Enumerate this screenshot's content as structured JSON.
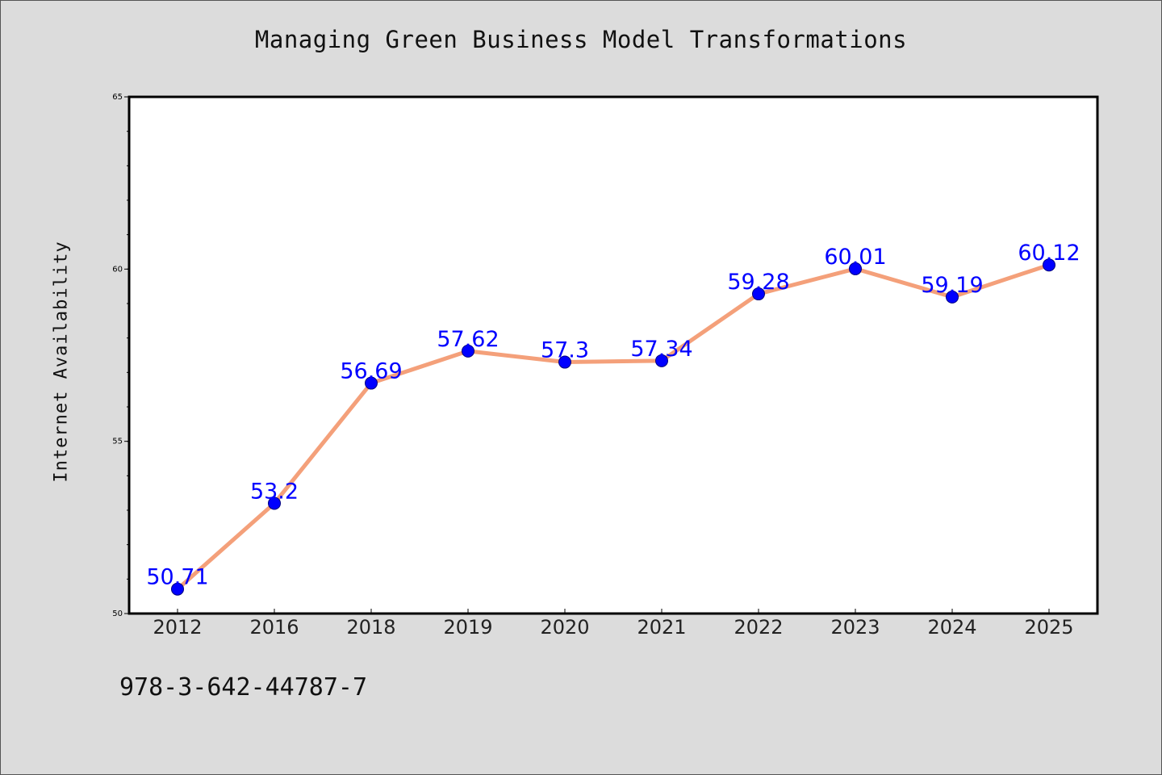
{
  "chart_data": {
    "type": "line",
    "title": "Managing Green Business Model Transformations",
    "xlabel": "",
    "ylabel": "Internet Availability",
    "categories": [
      "2012",
      "2016",
      "2018",
      "2019",
      "2020",
      "2021",
      "2022",
      "2023",
      "2024",
      "2025"
    ],
    "series": [
      {
        "values": [
          50.71,
          53.2,
          56.69,
          57.62,
          57.3,
          57.34,
          59.28,
          60.01,
          59.19,
          60.12
        ],
        "data_labels": [
          "50.71",
          "53.2",
          "56.69",
          "57.62",
          "57.3",
          "57.34",
          "59.28",
          "60.01",
          "59.19",
          "60.12"
        ]
      }
    ],
    "ylim": [
      50,
      65
    ],
    "yticks": [
      50,
      55,
      60,
      65
    ],
    "ytick_labels": [
      "50",
      "55",
      "60",
      "65"
    ],
    "grid": false,
    "line_color": "#f4a07a",
    "marker_color": "#0000ff",
    "label_color": "#0000ff",
    "background_color": "#dcdcdc",
    "plot_background_color": "#ffffff"
  },
  "footer": {
    "isbn": "978-3-642-44787-7"
  }
}
